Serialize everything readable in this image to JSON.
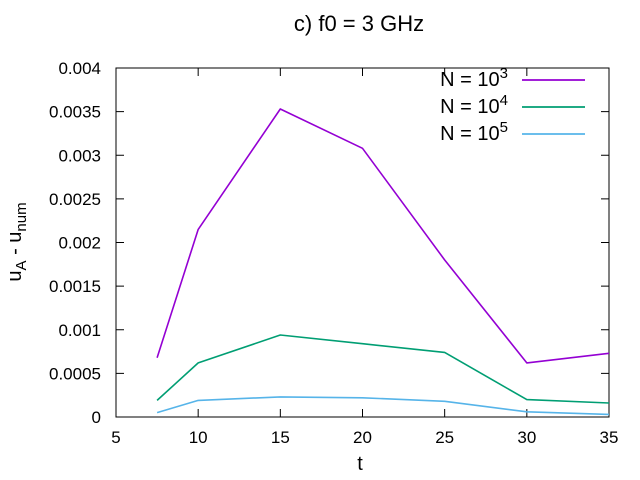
{
  "chart_data": {
    "type": "line",
    "title": "c) f0 = 3 GHz",
    "xlabel": "t",
    "ylabel": {
      "main": "u",
      "sub1": "A",
      "mid": " - u",
      "sub2": "num"
    },
    "xlim": [
      5,
      35
    ],
    "ylim": [
      0,
      0.004
    ],
    "xticks": [
      5,
      10,
      15,
      20,
      25,
      30,
      35
    ],
    "xtick_labels": [
      "5",
      "10",
      "15",
      "20",
      "25",
      "30",
      "35"
    ],
    "yticks": [
      0,
      0.0005,
      0.001,
      0.0015,
      0.002,
      0.0025,
      0.003,
      0.0035,
      0.004
    ],
    "ytick_labels": [
      "0",
      "0.0005",
      "0.001",
      "0.0015",
      "0.002",
      "0.0025",
      "0.003",
      "0.0035",
      "0.004"
    ],
    "grid": false,
    "legend_position": "top-right",
    "x": [
      7.5,
      10,
      15,
      20,
      25,
      30,
      35
    ],
    "series": [
      {
        "name": "N = 10",
        "exp": "3",
        "color": "#9400d3",
        "values": [
          0.00068,
          0.00215,
          0.00353,
          0.00308,
          0.0018,
          0.00062,
          0.00073
        ]
      },
      {
        "name": "N = 10",
        "exp": "4",
        "color": "#009e73",
        "values": [
          0.00019,
          0.00062,
          0.00094,
          0.00084,
          0.00074,
          0.0002,
          0.00016
        ]
      },
      {
        "name": "N = 10",
        "exp": "5",
        "color": "#56b4e9",
        "values": [
          5e-05,
          0.00019,
          0.00023,
          0.00022,
          0.00018,
          6e-05,
          3e-05
        ]
      }
    ]
  }
}
